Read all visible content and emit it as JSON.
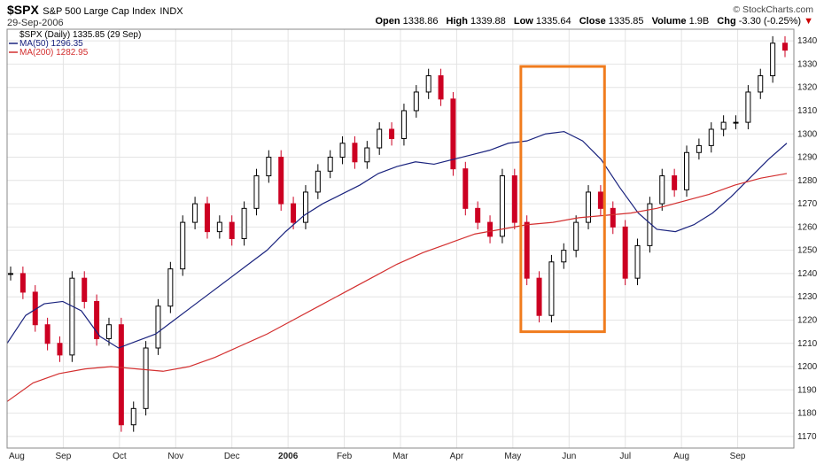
{
  "header": {
    "symbol": "$SPX",
    "name": "S&P 500 Large Cap Index",
    "exchange": "INDX",
    "date": "29-Sep-2006",
    "brand": "© StockCharts.com",
    "open_label": "Open",
    "open": "1338.86",
    "high_label": "High",
    "high": "1339.88",
    "low_label": "Low",
    "low": "1335.64",
    "close_label": "Close",
    "close": "1335.85",
    "volume_label": "Volume",
    "volume": "1.9B",
    "chg_label": "Chg",
    "chg": "-3.30 (-0.25%)",
    "chg_arrow": "▼"
  },
  "legend": {
    "price": "$SPX (Daily) 1335.85 (29 Sep)",
    "ma50": "MA(50) 1296.35",
    "ma200": "MA(200) 1282.95"
  },
  "colors": {
    "up_bar": "#000000",
    "down_bar": "#cc0022",
    "ma50": "#1a237e",
    "ma200": "#d32f2f",
    "highlight": "#f07c1e",
    "grid": "#e4e4e4"
  },
  "chart_data": {
    "type": "line",
    "y_axis_side": "right",
    "ylim": [
      1165,
      1345
    ],
    "yticks": [
      1170,
      1180,
      1190,
      1200,
      1210,
      1220,
      1230,
      1240,
      1250,
      1260,
      1270,
      1280,
      1290,
      1300,
      1310,
      1320,
      1330,
      1340
    ],
    "x_labels": [
      "Aug",
      "Sep",
      "Oct",
      "Nov",
      "Dec",
      "2006",
      "Feb",
      "Mar",
      "Apr",
      "May",
      "Jun",
      "Jul",
      "Aug",
      "Sep"
    ],
    "grid": true,
    "price_close": [
      1240,
      1232,
      1218,
      1210,
      1205,
      1238,
      1228,
      1212,
      1218,
      1175,
      1182,
      1208,
      1226,
      1242,
      1262,
      1270,
      1258,
      1262,
      1255,
      1268,
      1282,
      1290,
      1270,
      1262,
      1275,
      1284,
      1290,
      1296,
      1288,
      1294,
      1302,
      1298,
      1310,
      1318,
      1325,
      1315,
      1285,
      1268,
      1262,
      1256,
      1282,
      1262,
      1238,
      1222,
      1245,
      1250,
      1262,
      1275,
      1268,
      1260,
      1238,
      1252,
      1270,
      1282,
      1276,
      1292,
      1295,
      1302,
      1305,
      1305,
      1318,
      1325,
      1339,
      1336
    ],
    "series": [
      {
        "name": "MA(50)",
        "values": [
          1210,
          1222,
          1227,
          1228,
          1224,
          1213,
          1208,
          1211,
          1214,
          1220,
          1226,
          1232,
          1238,
          1244,
          1250,
          1258,
          1265,
          1270,
          1274,
          1278,
          1283,
          1286,
          1288,
          1287,
          1289,
          1291,
          1293,
          1296,
          1297,
          1300,
          1301,
          1297,
          1289,
          1277,
          1266,
          1259,
          1258,
          1261,
          1266,
          1273,
          1281,
          1289,
          1296
        ]
      },
      {
        "name": "MA(200)",
        "values": [
          1185,
          1193,
          1197,
          1199,
          1200,
          1199,
          1198,
          1200,
          1204,
          1209,
          1214,
          1220,
          1226,
          1232,
          1238,
          1244,
          1249,
          1253,
          1257,
          1259,
          1261,
          1262,
          1264,
          1265,
          1266,
          1268,
          1271,
          1274,
          1278,
          1281,
          1283
        ]
      }
    ]
  },
  "annotation": {
    "type": "rectangle",
    "x_range": [
      "May",
      "Jun"
    ],
    "y_range": [
      1215,
      1329
    ]
  }
}
